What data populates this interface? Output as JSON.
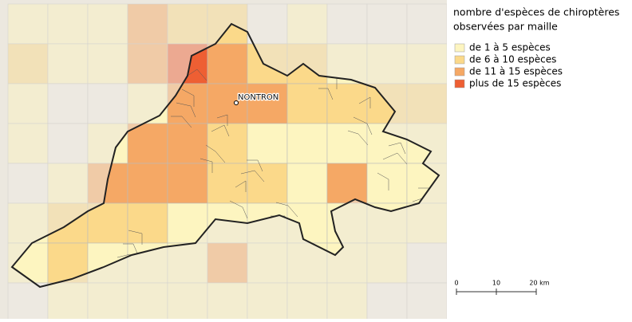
{
  "legend": {
    "title": [
      "nombre d'espèces de chiroptères",
      "observées par maille"
    ],
    "items": [
      {
        "label": "de 1 à 5 espèces",
        "color": "#fdf5c0"
      },
      {
        "label": "de 6 à 10 espèces",
        "color": "#fbd98a"
      },
      {
        "label": "de 11 à 15 espèces",
        "color": "#f5a865"
      },
      {
        "label": "plus de 15 espèces",
        "color": "#ee5f33"
      }
    ]
  },
  "map": {
    "place": "NONTRON"
  },
  "scale": {
    "labels": [
      "0",
      "10",
      "20 km"
    ]
  }
}
